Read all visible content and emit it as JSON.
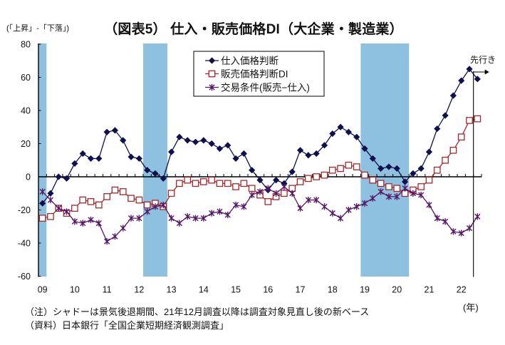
{
  "chart_data": {
    "type": "line",
    "title": "（図表5） 仕入・販売価格DI（大企業・製造業）",
    "ylabel": "(「上昇」-「下落」)",
    "xlabel": "(年)",
    "ylim": [
      -60,
      80
    ],
    "yticks": [
      80,
      60,
      40,
      20,
      0,
      -20,
      -40,
      -60
    ],
    "ytick_labels": [
      "80",
      "60",
      "40",
      "20",
      "0",
      "-20",
      "-40",
      "-60"
    ],
    "grid": false,
    "legend": "top-center",
    "x": [
      "2009Q1",
      "2009Q2",
      "2009Q3",
      "2009Q4",
      "2010Q1",
      "2010Q2",
      "2010Q3",
      "2010Q4",
      "2011Q1",
      "2011Q2",
      "2011Q3",
      "2011Q4",
      "2012Q1",
      "2012Q2",
      "2012Q3",
      "2012Q4",
      "2013Q1",
      "2013Q2",
      "2013Q3",
      "2013Q4",
      "2014Q1",
      "2014Q2",
      "2014Q3",
      "2014Q4",
      "2015Q1",
      "2015Q2",
      "2015Q3",
      "2015Q4",
      "2016Q1",
      "2016Q2",
      "2016Q3",
      "2016Q4",
      "2017Q1",
      "2017Q2",
      "2017Q3",
      "2017Q4",
      "2018Q1",
      "2018Q2",
      "2018Q3",
      "2018Q4",
      "2019Q1",
      "2019Q2",
      "2019Q3",
      "2019Q4",
      "2020Q1",
      "2020Q2",
      "2020Q3",
      "2020Q4",
      "2021Q1",
      "2021Q2",
      "2021Q3",
      "2021Q4",
      "2022Q1",
      "2022Q2",
      "2022Q3"
    ],
    "xticks": [
      {
        "x": "2009Q1",
        "label": "09"
      },
      {
        "x": "2010Q1",
        "label": "10"
      },
      {
        "x": "2011Q1",
        "label": "11"
      },
      {
        "x": "2012Q1",
        "label": "12"
      },
      {
        "x": "2013Q1",
        "label": "13"
      },
      {
        "x": "2014Q1",
        "label": "14"
      },
      {
        "x": "2015Q1",
        "label": "15"
      },
      {
        "x": "2016Q1",
        "label": "16"
      },
      {
        "x": "2017Q1",
        "label": "17"
      },
      {
        "x": "2018Q1",
        "label": "18"
      },
      {
        "x": "2019Q1",
        "label": "19"
      },
      {
        "x": "2020Q1",
        "label": "20"
      },
      {
        "x": "2021Q1",
        "label": "21"
      },
      {
        "x": "2022Q1",
        "label": "22"
      }
    ],
    "series": [
      {
        "key": "input-price",
        "name": "仕入価格判断",
        "marker": "diamond",
        "color": "#10104e",
        "values": [
          -16,
          -10,
          0,
          -1,
          8,
          14,
          11,
          11,
          27,
          28,
          22,
          12,
          11,
          4,
          2,
          -1,
          15,
          24,
          22,
          21,
          22,
          20,
          17,
          19,
          11,
          14,
          4,
          -2,
          -8,
          -2,
          -4,
          3,
          16,
          13,
          14,
          19,
          26,
          30,
          27,
          24,
          17,
          11,
          5,
          6,
          5,
          -3,
          2,
          5,
          15,
          29,
          37,
          49,
          58,
          65,
          59
        ]
      },
      {
        "key": "output-price",
        "name": "販売価格判断DI",
        "marker": "square-open",
        "color": "#a3282b",
        "values": [
          -25,
          -24,
          -19,
          -22,
          -19,
          -14,
          -15,
          -17,
          -12,
          -8,
          -9,
          -13,
          -14,
          -17,
          -16,
          -18,
          -10,
          -4,
          -2,
          -4,
          -3,
          -2,
          -4,
          -4,
          -6,
          -4,
          -7,
          -11,
          -15,
          -12,
          -10,
          -7,
          -3,
          -1,
          0,
          1,
          4,
          5,
          7,
          6,
          1,
          -2,
          -4,
          -6,
          -7,
          -10,
          -8,
          -6,
          -2,
          4,
          10,
          16,
          24,
          34,
          35
        ]
      },
      {
        "key": "terms-of-trade",
        "name": "交易条件(販売−仕入)",
        "marker": "asterisk",
        "color": "#561766",
        "values": [
          -9,
          -14,
          -19,
          -21,
          -27,
          -28,
          -26,
          -28,
          -39,
          -36,
          -31,
          -25,
          -25,
          -21,
          -18,
          -17,
          -25,
          -28,
          -24,
          -25,
          -25,
          -22,
          -21,
          -23,
          -17,
          -18,
          -11,
          -9,
          -7,
          -10,
          -6,
          -10,
          -19,
          -14,
          -14,
          -18,
          -22,
          -25,
          -20,
          -18,
          -16,
          -13,
          -9,
          -12,
          -12,
          -7,
          -10,
          -11,
          -17,
          -25,
          -27,
          -33,
          -34,
          -31,
          -24
        ]
      }
    ],
    "shaded_periods": [
      {
        "start": "2009Q1",
        "end": "2009Q1"
      },
      {
        "start": "2012Q2",
        "end": "2012Q4"
      },
      {
        "start": "2019Q1",
        "end": "2020Q2"
      }
    ],
    "band_color": "#8ec0df",
    "forecast": {
      "label": "先行き",
      "from": "2022Q3"
    }
  },
  "notes": [
    "（注）シャドーは景気後退期間、21年12月調査以降は調査対象見直し後の新ベース",
    "（資料）日本銀行「全国企業短期経済観測調査」"
  ]
}
